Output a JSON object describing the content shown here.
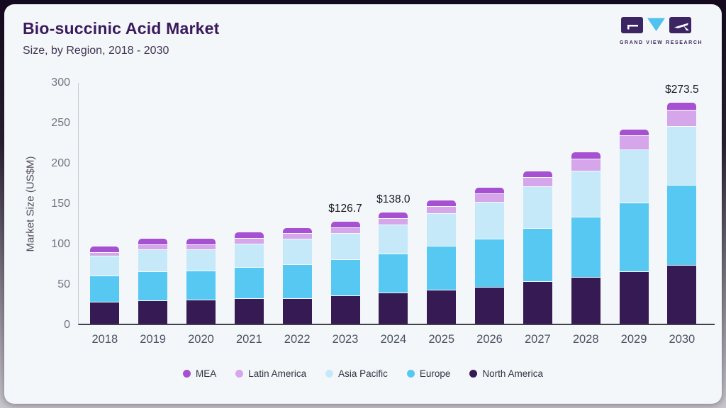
{
  "header": {
    "title": "Bio-succinic Acid Market",
    "subtitle": "Size, by Region, 2018 - 2030"
  },
  "logo": {
    "caption": "GRAND VIEW RESEARCH",
    "colors": {
      "dark": "#3b2663",
      "accent": "#4fc2ee"
    }
  },
  "chart_data": {
    "type": "bar",
    "stacked": true,
    "title": "Bio-succinic Acid Market Size, by Region, 2018 - 2030",
    "xlabel": "",
    "ylabel": "Market Size (US$M)",
    "ylim": [
      0,
      300
    ],
    "yticks": [
      0,
      50,
      100,
      150,
      200,
      250,
      300
    ],
    "grid": false,
    "legend_position": "bottom",
    "categories": [
      "2018",
      "2019",
      "2020",
      "2021",
      "2022",
      "2023",
      "2024",
      "2025",
      "2026",
      "2027",
      "2028",
      "2029",
      "2030"
    ],
    "series": [
      {
        "name": "North America",
        "color": "#361a53",
        "values": [
          27,
          29,
          29.5,
          32,
          32,
          35,
          38.2,
          42,
          45.5,
          53,
          57.5,
          65,
          72.5
        ]
      },
      {
        "name": "Europe",
        "color": "#56c8f2",
        "values": [
          33,
          36,
          36,
          38,
          42,
          44.7,
          48.3,
          54.5,
          60,
          65.5,
          75,
          85,
          99
        ]
      },
      {
        "name": "Asia Pacific",
        "color": "#c6e9fa",
        "values": [
          24,
          27.5,
          27,
          29.5,
          31,
          33,
          36.4,
          40.5,
          45.5,
          51.5,
          57,
          66,
          73.5
        ]
      },
      {
        "name": "Latin America",
        "color": "#d5a6ea",
        "values": [
          5,
          5.5,
          5.5,
          7,
          7,
          6.5,
          8,
          9,
          10,
          11.5,
          14.5,
          17,
          20
        ]
      },
      {
        "name": "MEA",
        "color": "#a650d2",
        "values": [
          6.5,
          7,
          7,
          6.5,
          6.5,
          7.5,
          7.1,
          6.5,
          7.5,
          7.5,
          8,
          7.5,
          8.5
        ]
      }
    ],
    "totals": [
      95.5,
      105,
      105,
      113,
      118.5,
      126.7,
      138.0,
      152.5,
      168.5,
      189,
      212,
      240.5,
      273.5
    ],
    "legend_order": [
      "MEA",
      "Latin America",
      "Asia Pacific",
      "Europe",
      "North America"
    ],
    "annotations": [
      {
        "category": "2023",
        "label": "$126.7"
      },
      {
        "category": "2024",
        "label": "$138.0"
      },
      {
        "category": "2030",
        "label": "$273.5"
      }
    ]
  }
}
